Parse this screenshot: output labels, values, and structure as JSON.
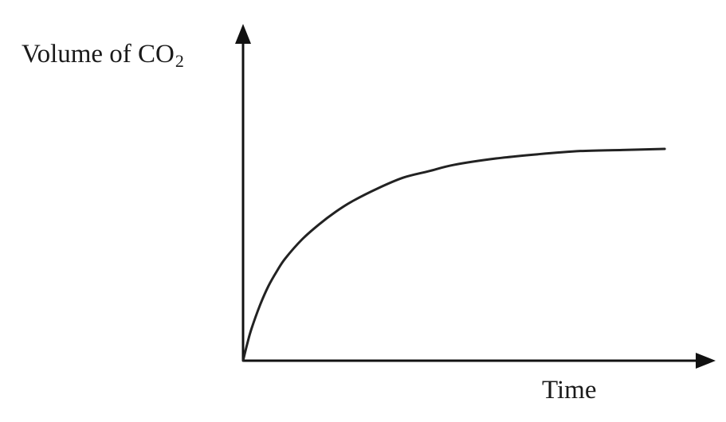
{
  "chart_data": {
    "type": "line",
    "title": "",
    "ylabel_main": "Volume of CO",
    "ylabel_sub": "2",
    "xlabel": "Time",
    "ticks": "none",
    "grid": false,
    "legend": "none",
    "curve_shape": "rises steeply from origin then levels off to a plateau",
    "series": [
      {
        "name": "",
        "color": "#222222",
        "points": [
          [
            0,
            0
          ],
          [
            1,
            0.08
          ],
          [
            2,
            0.15
          ],
          [
            4,
            0.26
          ],
          [
            6,
            0.35
          ],
          [
            8,
            0.42
          ],
          [
            10,
            0.48
          ],
          [
            14,
            0.57
          ],
          [
            18,
            0.64
          ],
          [
            22,
            0.7
          ],
          [
            26,
            0.75
          ],
          [
            32,
            0.81
          ],
          [
            38,
            0.86
          ],
          [
            44,
            0.89
          ],
          [
            50,
            0.92
          ],
          [
            60,
            0.95
          ],
          [
            70,
            0.97
          ],
          [
            80,
            0.985
          ],
          [
            90,
            0.99
          ],
          [
            100,
            0.995
          ]
        ]
      }
    ],
    "xlim": [
      0,
      110
    ],
    "ylim": [
      0,
      1.5
    ]
  }
}
